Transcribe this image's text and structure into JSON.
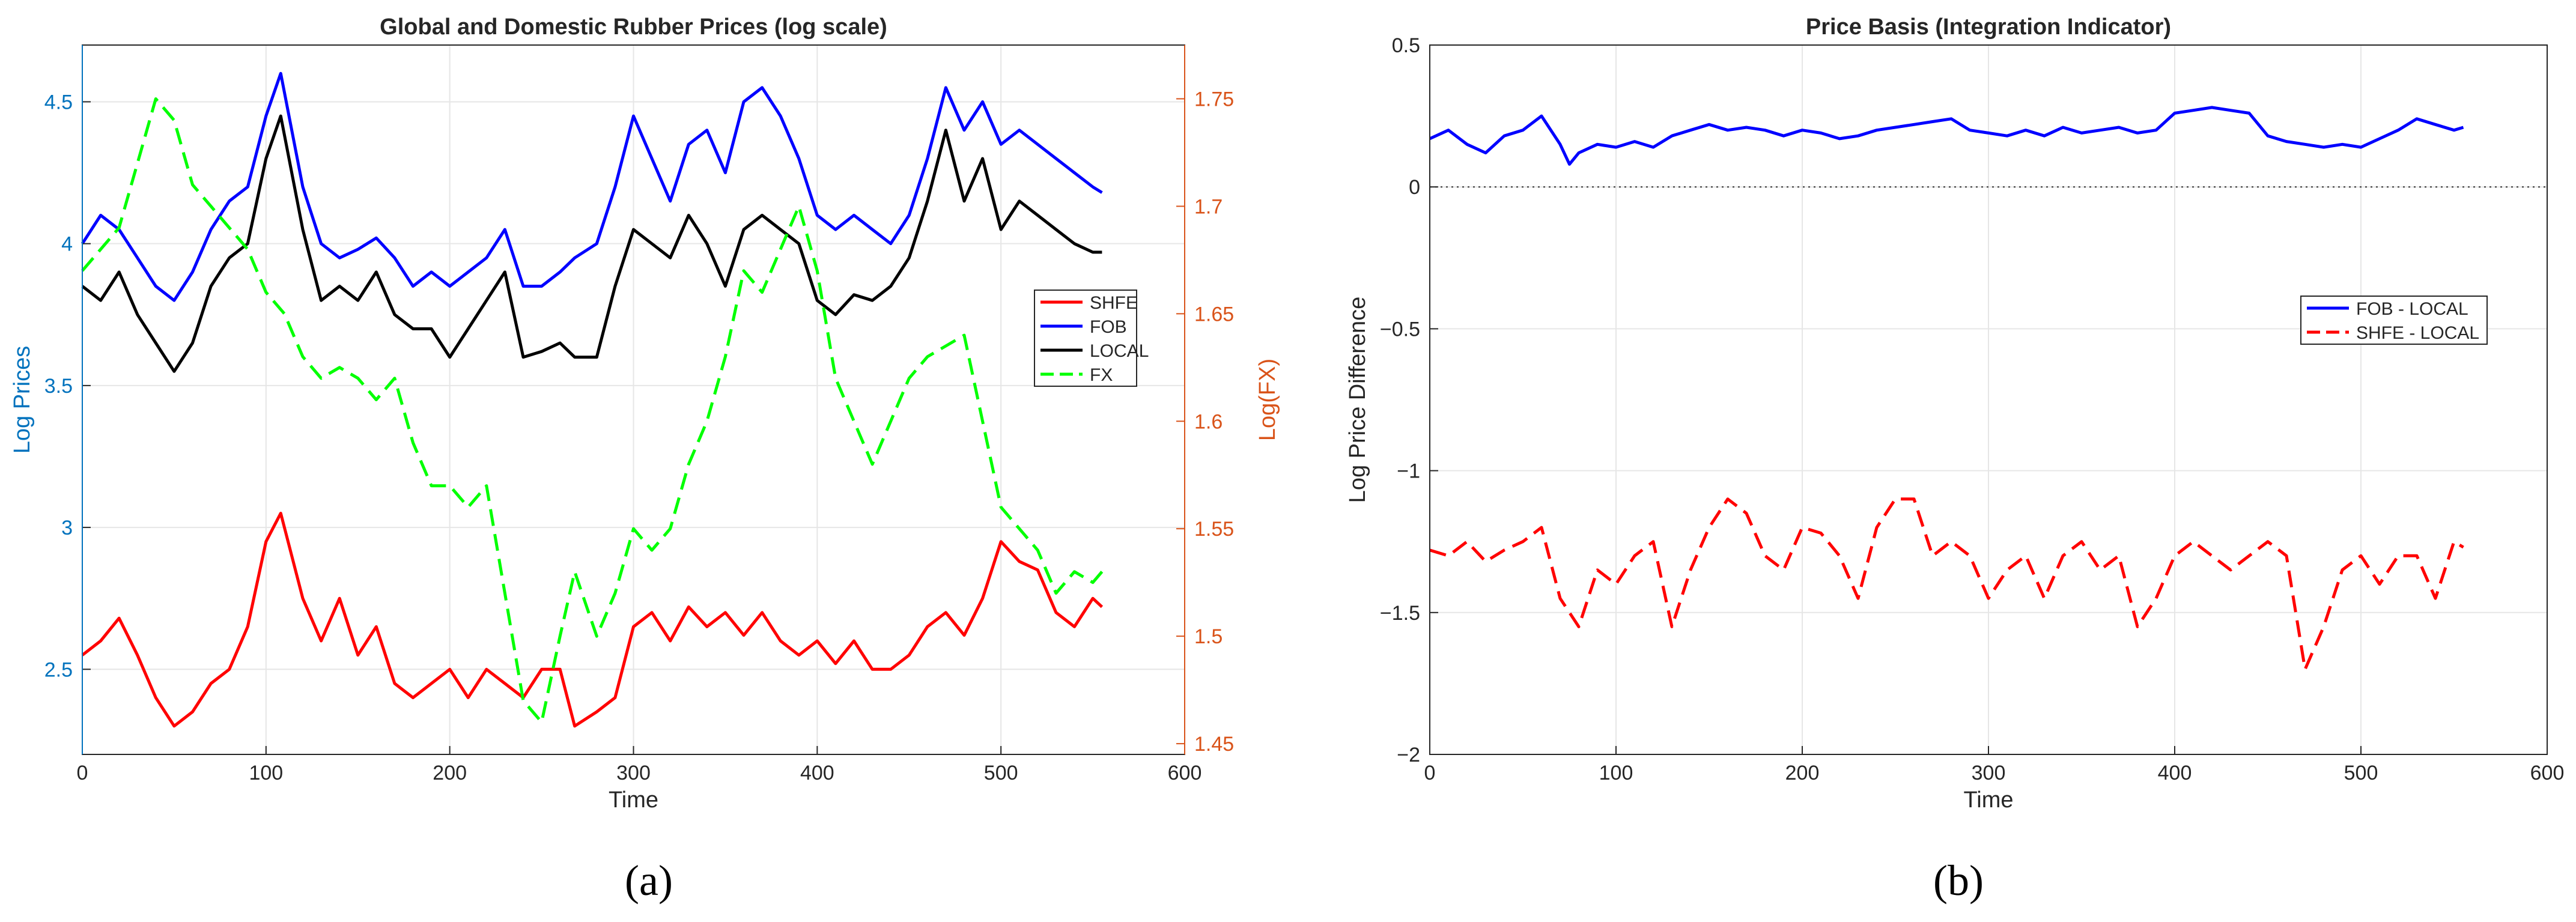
{
  "chart_data": [
    {
      "type": "line",
      "panel_caption": "(a)",
      "title": "Global and Domestic Rubber Prices (log scale)",
      "xlabel": "Time",
      "ylabel": "Log Prices",
      "y2label": "Log(FX)",
      "xlim": [
        0,
        600
      ],
      "ylim": [
        2.2,
        4.7
      ],
      "y2lim": [
        1.445,
        1.775
      ],
      "xticks": [
        "0",
        "100",
        "200",
        "300",
        "400",
        "500",
        "600"
      ],
      "yticks": [
        "2.5",
        "3",
        "3.5",
        "4",
        "4.5"
      ],
      "y2ticks": [
        "1.45",
        "1.5",
        "1.55",
        "1.6",
        "1.65",
        "1.7",
        "1.75"
      ],
      "grid": true,
      "legend_position": "right",
      "axis_colors": {
        "left": "#0072BD",
        "right": "#D95319"
      },
      "series": [
        {
          "name": "SHFE",
          "color": "#ff0000",
          "style": "solid",
          "axis": "left",
          "x": [
            0,
            10,
            20,
            30,
            40,
            50,
            60,
            70,
            80,
            90,
            100,
            108,
            120,
            130,
            140,
            150,
            160,
            170,
            180,
            190,
            200,
            210,
            220,
            230,
            240,
            250,
            260,
            268,
            280,
            290,
            300,
            310,
            320,
            330,
            340,
            350,
            360,
            370,
            380,
            390,
            400,
            410,
            420,
            430,
            440,
            450,
            460,
            470,
            480,
            490,
            500,
            510,
            520,
            530,
            540,
            550,
            555
          ],
          "y": [
            2.55,
            2.6,
            2.68,
            2.55,
            2.4,
            2.3,
            2.35,
            2.45,
            2.5,
            2.65,
            2.95,
            3.05,
            2.75,
            2.6,
            2.75,
            2.55,
            2.65,
            2.45,
            2.4,
            2.45,
            2.5,
            2.4,
            2.5,
            2.45,
            2.4,
            2.5,
            2.5,
            2.3,
            2.35,
            2.4,
            2.65,
            2.7,
            2.6,
            2.72,
            2.65,
            2.7,
            2.62,
            2.7,
            2.6,
            2.55,
            2.6,
            2.52,
            2.6,
            2.5,
            2.5,
            2.55,
            2.65,
            2.7,
            2.62,
            2.75,
            2.95,
            2.88,
            2.85,
            2.7,
            2.65,
            2.75,
            2.72
          ]
        },
        {
          "name": "FOB",
          "color": "#0000ff",
          "style": "solid",
          "axis": "left",
          "x": [
            0,
            10,
            20,
            30,
            40,
            50,
            60,
            70,
            80,
            90,
            100,
            108,
            120,
            130,
            140,
            150,
            160,
            170,
            180,
            190,
            200,
            210,
            220,
            230,
            240,
            250,
            260,
            268,
            280,
            290,
            300,
            310,
            320,
            330,
            340,
            350,
            360,
            370,
            380,
            390,
            400,
            410,
            420,
            430,
            440,
            450,
            460,
            470,
            480,
            490,
            500,
            510,
            520,
            530,
            540,
            550,
            555
          ],
          "y": [
            4.0,
            4.1,
            4.05,
            3.95,
            3.85,
            3.8,
            3.9,
            4.05,
            4.15,
            4.2,
            4.45,
            4.6,
            4.2,
            4.0,
            3.95,
            3.98,
            4.02,
            3.95,
            3.85,
            3.9,
            3.85,
            3.9,
            3.95,
            4.05,
            3.85,
            3.85,
            3.9,
            3.95,
            4.0,
            4.2,
            4.45,
            4.3,
            4.15,
            4.35,
            4.4,
            4.25,
            4.5,
            4.55,
            4.45,
            4.3,
            4.1,
            4.05,
            4.1,
            4.05,
            4.0,
            4.1,
            4.3,
            4.55,
            4.4,
            4.5,
            4.35,
            4.4,
            4.35,
            4.3,
            4.25,
            4.2,
            4.18
          ]
        },
        {
          "name": "LOCAL",
          "color": "#000000",
          "style": "solid",
          "axis": "left",
          "x": [
            0,
            10,
            20,
            30,
            40,
            50,
            60,
            70,
            80,
            90,
            100,
            108,
            120,
            130,
            140,
            150,
            160,
            170,
            180,
            190,
            200,
            210,
            220,
            230,
            240,
            250,
            260,
            268,
            280,
            290,
            300,
            310,
            320,
            330,
            340,
            350,
            360,
            370,
            380,
            390,
            400,
            410,
            420,
            430,
            440,
            450,
            460,
            470,
            480,
            490,
            500,
            510,
            520,
            530,
            540,
            550,
            555
          ],
          "y": [
            3.85,
            3.8,
            3.9,
            3.75,
            3.65,
            3.55,
            3.65,
            3.85,
            3.95,
            4.0,
            4.3,
            4.45,
            4.05,
            3.8,
            3.85,
            3.8,
            3.9,
            3.75,
            3.7,
            3.7,
            3.6,
            3.7,
            3.8,
            3.9,
            3.6,
            3.62,
            3.65,
            3.6,
            3.6,
            3.85,
            4.05,
            4.0,
            3.95,
            4.1,
            4.0,
            3.85,
            4.05,
            4.1,
            4.05,
            4.0,
            3.8,
            3.75,
            3.82,
            3.8,
            3.85,
            3.95,
            4.15,
            4.4,
            4.15,
            4.3,
            4.05,
            4.15,
            4.1,
            4.05,
            4.0,
            3.97,
            3.97
          ]
        },
        {
          "name": "FX",
          "color": "#00ff00",
          "style": "dashed",
          "axis": "right",
          "x": [
            0,
            10,
            20,
            30,
            40,
            50,
            60,
            70,
            80,
            90,
            100,
            110,
            120,
            130,
            140,
            150,
            160,
            170,
            180,
            190,
            200,
            210,
            220,
            230,
            240,
            250,
            260,
            268,
            280,
            290,
            300,
            310,
            320,
            330,
            340,
            350,
            360,
            370,
            380,
            390,
            400,
            410,
            420,
            430,
            440,
            450,
            460,
            470,
            480,
            490,
            500,
            510,
            520,
            530,
            540,
            550,
            555
          ],
          "y": [
            1.67,
            1.68,
            1.69,
            1.72,
            1.75,
            1.74,
            1.71,
            1.7,
            1.69,
            1.68,
            1.66,
            1.65,
            1.63,
            1.62,
            1.625,
            1.62,
            1.61,
            1.62,
            1.59,
            1.57,
            1.57,
            1.56,
            1.57,
            1.52,
            1.47,
            1.46,
            1.5,
            1.53,
            1.5,
            1.52,
            1.55,
            1.54,
            1.55,
            1.58,
            1.6,
            1.63,
            1.67,
            1.66,
            1.68,
            1.7,
            1.67,
            1.62,
            1.6,
            1.58,
            1.6,
            1.62,
            1.63,
            1.635,
            1.64,
            1.6,
            1.56,
            1.55,
            1.54,
            1.52,
            1.53,
            1.525,
            1.53
          ]
        }
      ]
    },
    {
      "type": "line",
      "panel_caption": "(b)",
      "title": "Price Basis (Integration Indicator)",
      "xlabel": "Time",
      "ylabel": "Log Price Difference",
      "xlim": [
        0,
        600
      ],
      "ylim": [
        -2,
        0.5
      ],
      "xticks": [
        "0",
        "100",
        "200",
        "300",
        "400",
        "500",
        "600"
      ],
      "yticks": [
        "-2",
        "-1.5",
        "-1",
        "-0.5",
        "0",
        "0.5"
      ],
      "grid": true,
      "legend_position": "right",
      "zero_line": true,
      "series": [
        {
          "name": "FOB - LOCAL",
          "color": "#0000ff",
          "style": "solid",
          "x": [
            0,
            10,
            20,
            30,
            40,
            50,
            60,
            70,
            75,
            80,
            90,
            100,
            110,
            120,
            130,
            140,
            150,
            160,
            170,
            180,
            190,
            200,
            210,
            220,
            230,
            240,
            250,
            260,
            270,
            280,
            290,
            300,
            310,
            320,
            330,
            340,
            350,
            360,
            370,
            380,
            390,
            400,
            410,
            420,
            430,
            440,
            450,
            460,
            470,
            480,
            490,
            500,
            510,
            520,
            530,
            540,
            550,
            555
          ],
          "y": [
            0.17,
            0.2,
            0.15,
            0.12,
            0.18,
            0.2,
            0.25,
            0.15,
            0.08,
            0.12,
            0.15,
            0.14,
            0.16,
            0.14,
            0.18,
            0.2,
            0.22,
            0.2,
            0.21,
            0.2,
            0.18,
            0.2,
            0.19,
            0.17,
            0.18,
            0.2,
            0.21,
            0.22,
            0.23,
            0.24,
            0.2,
            0.19,
            0.18,
            0.2,
            0.18,
            0.21,
            0.19,
            0.2,
            0.21,
            0.19,
            0.2,
            0.26,
            0.27,
            0.28,
            0.27,
            0.26,
            0.18,
            0.16,
            0.15,
            0.14,
            0.15,
            0.14,
            0.17,
            0.2,
            0.24,
            0.22,
            0.2,
            0.21
          ]
        },
        {
          "name": "SHFE - LOCAL",
          "color": "#ff0000",
          "style": "dashed",
          "x": [
            0,
            10,
            20,
            30,
            40,
            50,
            60,
            70,
            80,
            90,
            100,
            110,
            120,
            130,
            140,
            150,
            160,
            170,
            180,
            190,
            200,
            210,
            220,
            230,
            240,
            250,
            260,
            270,
            280,
            290,
            300,
            310,
            320,
            330,
            340,
            350,
            360,
            370,
            380,
            390,
            400,
            410,
            420,
            430,
            440,
            450,
            460,
            470,
            480,
            490,
            500,
            510,
            520,
            530,
            540,
            550,
            555
          ],
          "y": [
            -1.28,
            -1.3,
            -1.25,
            -1.32,
            -1.28,
            -1.25,
            -1.2,
            -1.45,
            -1.55,
            -1.35,
            -1.4,
            -1.3,
            -1.25,
            -1.55,
            -1.35,
            -1.2,
            -1.1,
            -1.15,
            -1.3,
            -1.35,
            -1.2,
            -1.22,
            -1.3,
            -1.45,
            -1.2,
            -1.1,
            -1.1,
            -1.3,
            -1.25,
            -1.3,
            -1.45,
            -1.35,
            -1.3,
            -1.45,
            -1.3,
            -1.25,
            -1.35,
            -1.3,
            -1.55,
            -1.45,
            -1.3,
            -1.25,
            -1.3,
            -1.35,
            -1.3,
            -1.25,
            -1.3,
            -1.7,
            -1.55,
            -1.35,
            -1.3,
            -1.4,
            -1.3,
            -1.3,
            -1.45,
            -1.25,
            -1.27
          ]
        }
      ]
    }
  ]
}
